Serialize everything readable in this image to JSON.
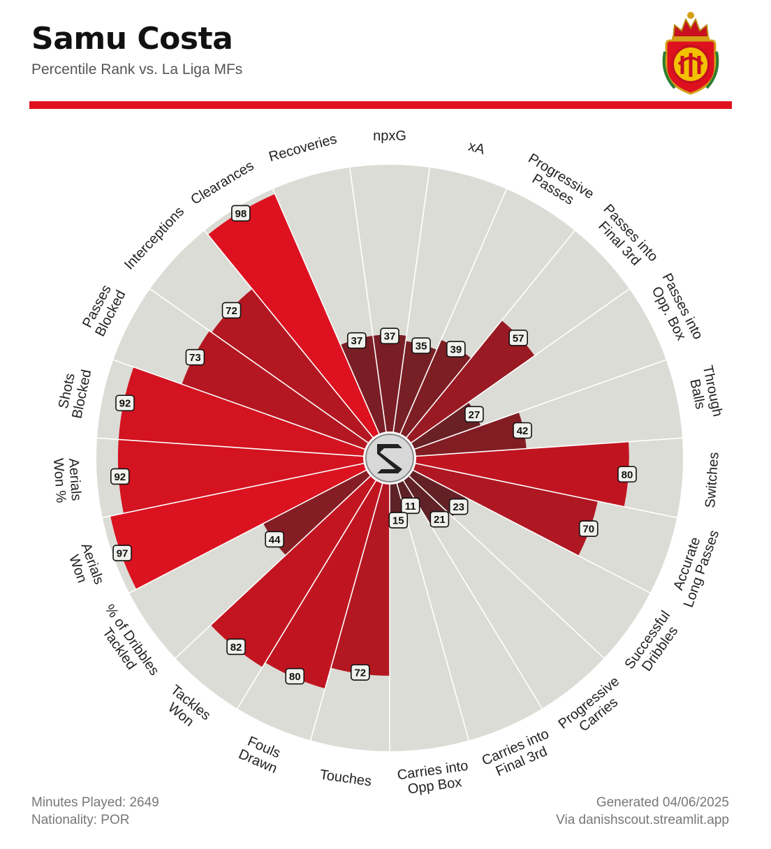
{
  "header": {
    "title": "Samu Costa",
    "subtitle": "Percentile Rank vs. La Liga MFs"
  },
  "footer": {
    "minutes": "Minutes Played: 2649",
    "nationality": "Nationality: POR",
    "generated": "Generated 04/06/2025",
    "source": "Via danishscout.streamlit.app"
  },
  "colors": {
    "accent": "#e0111f",
    "background_wedge": "#dcdcd6",
    "low": "#5e2226",
    "high": "#e0111f"
  },
  "icons": {
    "center": "danishscout-logo-icon",
    "crest": "rcd-mallorca-crest-icon"
  },
  "chart_data": {
    "type": "radar-bar",
    "title": "Samu Costa",
    "subtitle": "Percentile Rank vs. La Liga MFs",
    "range": [
      0,
      100
    ],
    "categories": [
      {
        "label": [
          "npxG"
        ],
        "value": 37
      },
      {
        "label": [
          "xA"
        ],
        "value": 35
      },
      {
        "label": [
          "Progressive",
          "Passes"
        ],
        "value": 39
      },
      {
        "label": [
          "Passes into",
          "Final 3rd"
        ],
        "value": 57
      },
      {
        "label": [
          "Passes into",
          "Opp. Box"
        ],
        "value": 27
      },
      {
        "label": [
          "Through",
          "Balls"
        ],
        "value": 42
      },
      {
        "label": [
          "Switches"
        ],
        "value": 80
      },
      {
        "label": [
          "Accurate",
          "Long Passes"
        ],
        "value": 70
      },
      {
        "label": [
          "Successful",
          "Dribbles"
        ],
        "value": 23
      },
      {
        "label": [
          "Progressive",
          "Carries"
        ],
        "value": 21
      },
      {
        "label": [
          "Carries into",
          "Final 3rd"
        ],
        "value": 11
      },
      {
        "label": [
          "Carries into",
          "Opp Box"
        ],
        "value": 15
      },
      {
        "label": [
          "Touches"
        ],
        "value": 72
      },
      {
        "label": [
          "Fouls",
          "Drawn"
        ],
        "value": 80
      },
      {
        "label": [
          "Tackles",
          "Won"
        ],
        "value": 82
      },
      {
        "label": [
          "% of Dribbles",
          "Tackled"
        ],
        "value": 44
      },
      {
        "label": [
          "Aerials",
          "Won"
        ],
        "value": 97
      },
      {
        "label": [
          "Aerials",
          "Won %"
        ],
        "value": 92
      },
      {
        "label": [
          "Shots",
          "Blocked"
        ],
        "value": 92
      },
      {
        "label": [
          "Passes",
          "Blocked"
        ],
        "value": 73
      },
      {
        "label": [
          "Interceptions"
        ],
        "value": 72
      },
      {
        "label": [
          "Clearances"
        ],
        "value": 98
      },
      {
        "label": [
          "Recoveries"
        ],
        "value": 37
      }
    ]
  }
}
